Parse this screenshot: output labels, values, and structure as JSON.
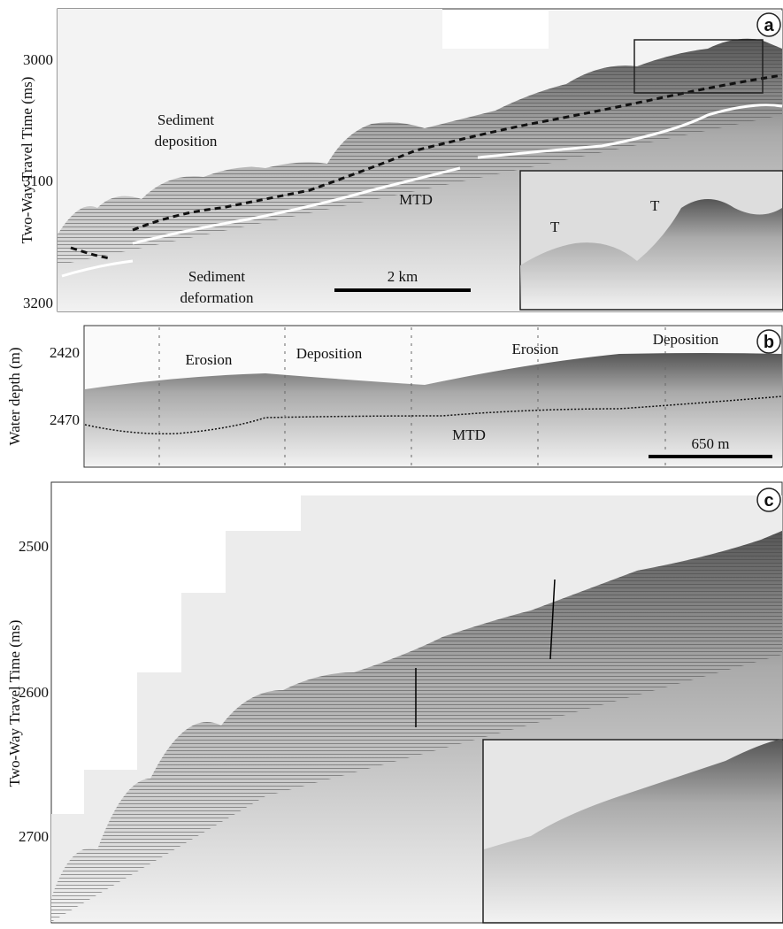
{
  "figure": {
    "panels": [
      {
        "label": "a",
        "y_axis_label": "Two-Way Travel Time (ms)",
        "y_ticks": [
          3000,
          3100,
          3200
        ],
        "annotations": [
          {
            "lines": [
              "Sediment",
              "deposition"
            ]
          },
          {
            "lines": [
              "Sediment",
              "deformation"
            ]
          },
          {
            "lines": [
              "MTD"
            ]
          }
        ],
        "inset_labels": [
          "T",
          "T"
        ],
        "scale_bar": "2 km"
      },
      {
        "label": "b",
        "y_axis_label": "Water depth (m)",
        "y_ticks": [
          2420,
          2470
        ],
        "annotations": [
          {
            "lines": [
              "Erosion"
            ]
          },
          {
            "lines": [
              "Deposition"
            ]
          },
          {
            "lines": [
              "Erosion"
            ]
          },
          {
            "lines": [
              "Deposition"
            ]
          },
          {
            "lines": [
              "MTD"
            ]
          }
        ],
        "scale_bar": "650 m"
      },
      {
        "label": "c",
        "y_axis_label": "Two-Way Travel Time (ms)",
        "y_ticks": [
          2500,
          2600,
          2700
        ]
      }
    ]
  }
}
